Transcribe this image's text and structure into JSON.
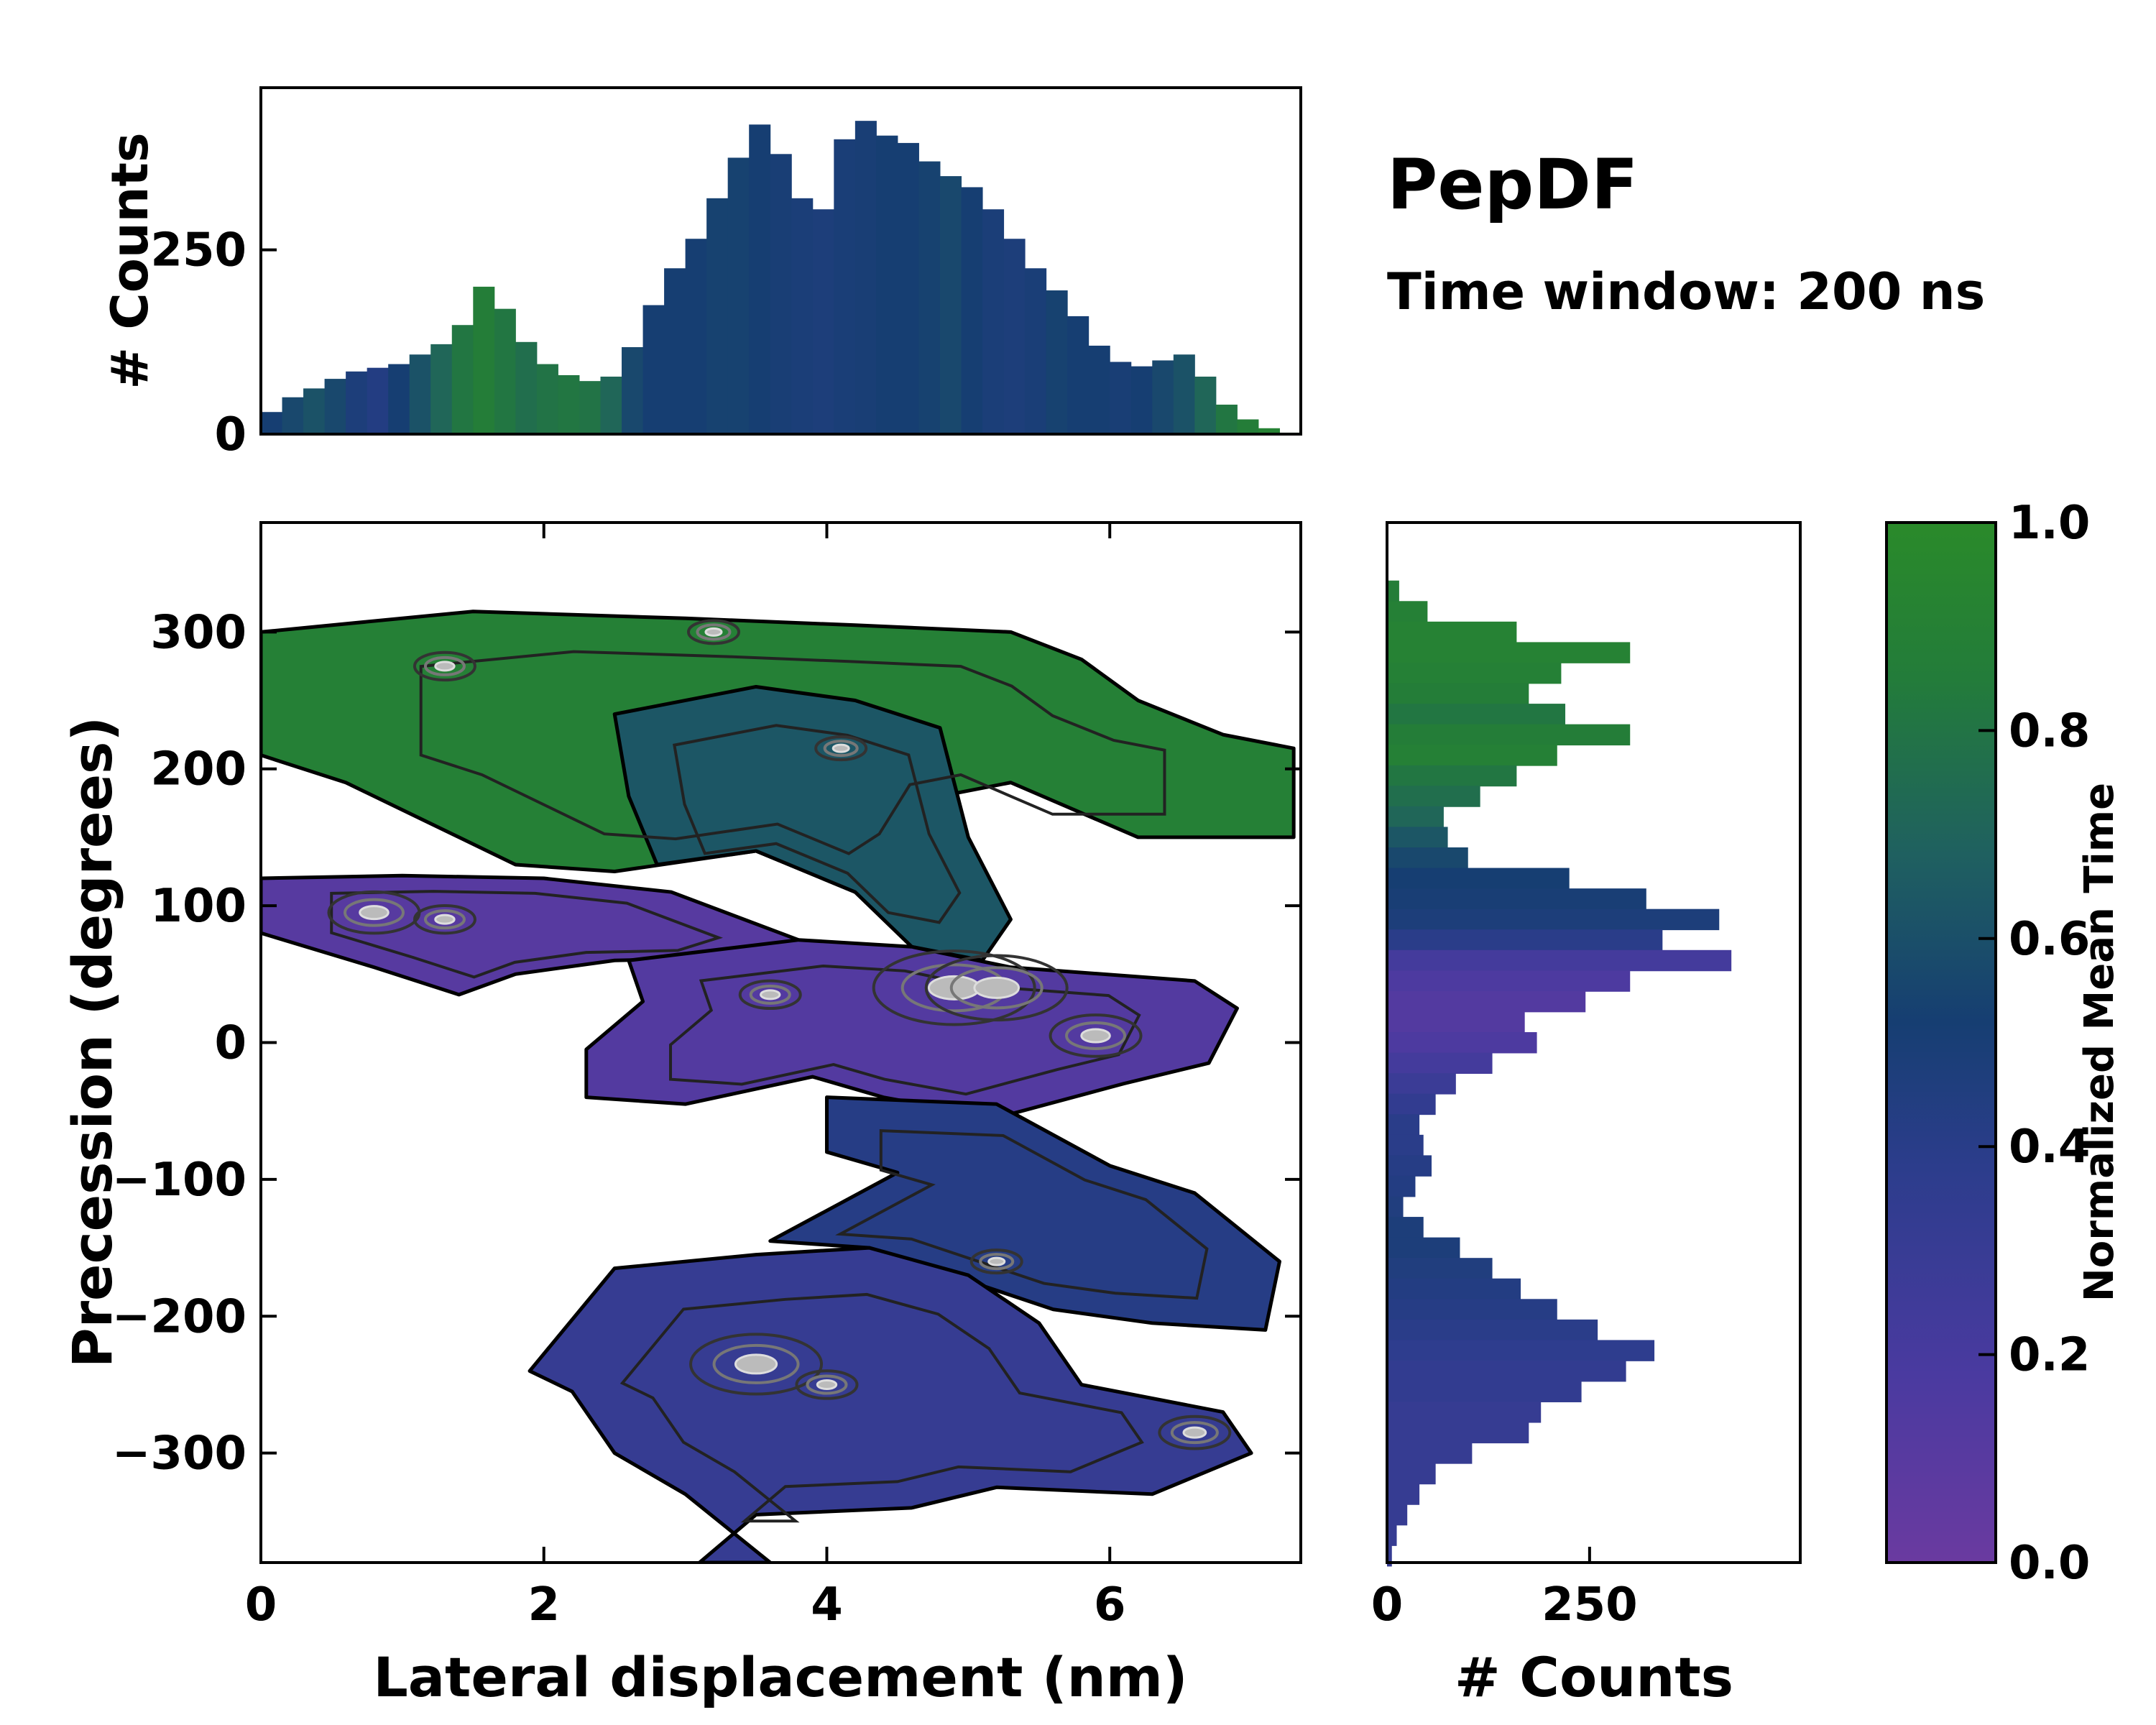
{
  "title": "PepDF",
  "subtitle": "Time window: 200 ns",
  "colors": {
    "low": "#5a3a9a",
    "mid": "#1b3f6e",
    "high": "#2a8a2a",
    "background": "#ffffff"
  },
  "chart_data": [
    {
      "id": "main",
      "type": "heatmap",
      "xlabel": "Lateral displacement (nm)",
      "ylabel": "Precession (degrees)",
      "xlim": [
        0,
        7.35
      ],
      "ylim": [
        -380,
        380
      ],
      "xticks": [
        "0",
        "2",
        "4",
        "6"
      ],
      "yticks": [
        "300",
        "200",
        "100",
        "0",
        "−100",
        "−200",
        "−300"
      ],
      "colormap": [
        "#6a3aa0",
        "#4a3aa0",
        "#2c3d8c",
        "#163e72",
        "#1f6060",
        "#237c3a",
        "#2a8a2a"
      ],
      "regions": [
        {
          "name": "upper-green",
          "value": 0.88,
          "points": [
            [
              0,
              300
            ],
            [
              1.5,
              315
            ],
            [
              3,
              310
            ],
            [
              4.2,
              305
            ],
            [
              5.3,
              300
            ],
            [
              5.8,
              280
            ],
            [
              6.2,
              250
            ],
            [
              6.8,
              225
            ],
            [
              7.3,
              215
            ],
            [
              7.3,
              150
            ],
            [
              6.2,
              150
            ],
            [
              5.3,
              190
            ],
            [
              4.8,
              180
            ],
            [
              4.5,
              130
            ],
            [
              4.2,
              110
            ],
            [
              3.5,
              140
            ],
            [
              2.5,
              125
            ],
            [
              1.8,
              130
            ],
            [
              0.6,
              190
            ],
            [
              0,
              210
            ]
          ]
        },
        {
          "name": "teal-middle",
          "value": 0.62,
          "points": [
            [
              2.5,
              240
            ],
            [
              3.5,
              260
            ],
            [
              4.2,
              250
            ],
            [
              4.8,
              230
            ],
            [
              5.0,
              150
            ],
            [
              5.3,
              90
            ],
            [
              5.1,
              60
            ],
            [
              4.6,
              70
            ],
            [
              4.2,
              110
            ],
            [
              3.5,
              140
            ],
            [
              2.8,
              130
            ],
            [
              2.6,
              180
            ]
          ]
        },
        {
          "name": "left-purple",
          "value": 0.1,
          "points": [
            [
              0,
              120
            ],
            [
              1,
              122
            ],
            [
              2,
              120
            ],
            [
              2.9,
              110
            ],
            [
              3.8,
              75
            ],
            [
              3.4,
              62
            ],
            [
              2.5,
              60
            ],
            [
              1.8,
              50
            ],
            [
              1.4,
              35
            ],
            [
              0.8,
              55
            ],
            [
              0,
              80
            ]
          ]
        },
        {
          "name": "center-purple",
          "value": 0.12,
          "points": [
            [
              2.6,
              60
            ],
            [
              3.8,
              75
            ],
            [
              4.6,
              70
            ],
            [
              5.3,
              55
            ],
            [
              6.6,
              45
            ],
            [
              6.9,
              25
            ],
            [
              6.7,
              -15
            ],
            [
              6.1,
              -30
            ],
            [
              5.2,
              -55
            ],
            [
              4.4,
              -40
            ],
            [
              3.9,
              -25
            ],
            [
              3.0,
              -45
            ],
            [
              2.3,
              -40
            ],
            [
              2.3,
              -5
            ],
            [
              2.7,
              30
            ]
          ]
        },
        {
          "name": "mid-blue",
          "value": 0.38,
          "points": [
            [
              4.0,
              -40
            ],
            [
              5.2,
              -45
            ],
            [
              6.0,
              -90
            ],
            [
              6.6,
              -110
            ],
            [
              7.2,
              -160
            ],
            [
              7.1,
              -210
            ],
            [
              6.3,
              -205
            ],
            [
              5.6,
              -195
            ],
            [
              4.3,
              -150
            ],
            [
              3.6,
              -145
            ],
            [
              4.5,
              -95
            ],
            [
              4.0,
              -80
            ]
          ]
        },
        {
          "name": "lower-blue",
          "value": 0.28,
          "points": [
            [
              2.5,
              -165
            ],
            [
              3.5,
              -155
            ],
            [
              4.3,
              -150
            ],
            [
              5.0,
              -170
            ],
            [
              5.5,
              -205
            ],
            [
              5.8,
              -250
            ],
            [
              6.8,
              -270
            ],
            [
              7.0,
              -300
            ],
            [
              6.3,
              -330
            ],
            [
              5.2,
              -325
            ],
            [
              4.6,
              -340
            ],
            [
              3.5,
              -345
            ],
            [
              3.1,
              -380
            ],
            [
              3.6,
              -380
            ],
            [
              3.0,
              -330
            ],
            [
              2.5,
              -300
            ],
            [
              2.2,
              -255
            ],
            [
              1.9,
              -240
            ]
          ]
        }
      ],
      "peaks": [
        [
          1.3,
          275,
          0.6
        ],
        [
          3.2,
          300,
          0.5
        ],
        [
          4.1,
          215,
          0.5
        ],
        [
          0.8,
          95,
          0.9
        ],
        [
          4.9,
          40,
          1.6
        ],
        [
          5.2,
          40,
          1.4
        ],
        [
          5.9,
          5,
          0.9
        ],
        [
          3.5,
          -235,
          1.3
        ],
        [
          4.0,
          -250,
          0.6
        ],
        [
          6.6,
          -285,
          0.7
        ],
        [
          1.3,
          90,
          0.6
        ],
        [
          3.6,
          35,
          0.6
        ],
        [
          5.2,
          -160,
          0.5
        ]
      ]
    },
    {
      "id": "top-marginal",
      "type": "bar",
      "xlabel": "",
      "ylabel": "# Counts",
      "xlim": [
        0,
        7.35
      ],
      "ylim": [
        0,
        470
      ],
      "yticks": [
        "0",
        "250"
      ],
      "yticks_values": [
        0,
        250
      ],
      "x": [
        0.0,
        0.15,
        0.3,
        0.45,
        0.6,
        0.75,
        0.9,
        1.05,
        1.2,
        1.35,
        1.5,
        1.65,
        1.8,
        1.95,
        2.1,
        2.25,
        2.4,
        2.55,
        2.7,
        2.85,
        3.0,
        3.15,
        3.3,
        3.45,
        3.6,
        3.75,
        3.9,
        4.05,
        4.2,
        4.35,
        4.5,
        4.65,
        4.8,
        4.95,
        5.1,
        5.25,
        5.4,
        5.55,
        5.7,
        5.85,
        6.0,
        6.15,
        6.3,
        6.45,
        6.6,
        6.75,
        6.9,
        7.05,
        7.2
      ],
      "values": [
        30,
        50,
        62,
        75,
        85,
        90,
        95,
        108,
        122,
        148,
        200,
        170,
        125,
        95,
        80,
        72,
        78,
        118,
        175,
        225,
        265,
        320,
        375,
        420,
        380,
        320,
        305,
        400,
        425,
        405,
        395,
        370,
        350,
        335,
        305,
        265,
        225,
        195,
        160,
        120,
        98,
        92,
        100,
        108,
        78,
        40,
        20,
        8,
        2
      ],
      "bar_color_values": [
        0.5,
        0.55,
        0.6,
        0.55,
        0.45,
        0.4,
        0.5,
        0.6,
        0.7,
        0.8,
        0.85,
        0.8,
        0.75,
        0.78,
        0.8,
        0.78,
        0.7,
        0.55,
        0.5,
        0.5,
        0.5,
        0.52,
        0.52,
        0.5,
        0.48,
        0.46,
        0.45,
        0.47,
        0.48,
        0.5,
        0.5,
        0.52,
        0.55,
        0.5,
        0.46,
        0.45,
        0.47,
        0.52,
        0.5,
        0.5,
        0.48,
        0.5,
        0.55,
        0.6,
        0.7,
        0.8,
        0.85,
        0.9,
        0.9
      ]
    },
    {
      "id": "right-marginal",
      "type": "bar",
      "orientation": "horizontal",
      "xlabel": "# Counts",
      "xlim": [
        0,
        510
      ],
      "xticks": [
        "0",
        "250"
      ],
      "xticks_values": [
        0,
        250
      ],
      "ylim": [
        -380,
        380
      ],
      "y": [
        330,
        315,
        300,
        285,
        270,
        255,
        240,
        225,
        210,
        195,
        180,
        165,
        150,
        135,
        120,
        105,
        90,
        75,
        60,
        45,
        30,
        15,
        0,
        -15,
        -30,
        -45,
        -60,
        -75,
        -90,
        -105,
        -120,
        -135,
        -150,
        -165,
        -180,
        -195,
        -210,
        -225,
        -240,
        -255,
        -270,
        -285,
        -300,
        -315,
        -330,
        -345,
        -360,
        -375
      ],
      "values": [
        15,
        50,
        160,
        300,
        215,
        175,
        220,
        300,
        210,
        160,
        115,
        70,
        75,
        100,
        225,
        320,
        410,
        340,
        425,
        300,
        245,
        170,
        185,
        130,
        85,
        60,
        40,
        45,
        55,
        35,
        20,
        45,
        90,
        130,
        165,
        210,
        260,
        330,
        295,
        240,
        190,
        175,
        105,
        60,
        40,
        25,
        12,
        6
      ],
      "bar_color_values": [
        0.85,
        0.88,
        0.9,
        0.9,
        0.88,
        0.85,
        0.8,
        0.85,
        0.88,
        0.8,
        0.75,
        0.7,
        0.62,
        0.55,
        0.5,
        0.48,
        0.45,
        0.35,
        0.2,
        0.15,
        0.12,
        0.12,
        0.15,
        0.2,
        0.25,
        0.3,
        0.35,
        0.35,
        0.38,
        0.4,
        0.42,
        0.45,
        0.45,
        0.42,
        0.4,
        0.38,
        0.35,
        0.32,
        0.3,
        0.3,
        0.28,
        0.28,
        0.28,
        0.28,
        0.28,
        0.28,
        0.28,
        0.28
      ]
    },
    {
      "id": "colorbar",
      "type": "colorbar",
      "label": "Normalized Mean Time",
      "range": [
        0.0,
        1.0
      ],
      "ticks": [
        "0.0",
        "0.2",
        "0.4",
        "0.6",
        "0.8",
        "1.0"
      ],
      "ticks_values": [
        0.0,
        0.2,
        0.4,
        0.6,
        0.8,
        1.0
      ]
    }
  ]
}
